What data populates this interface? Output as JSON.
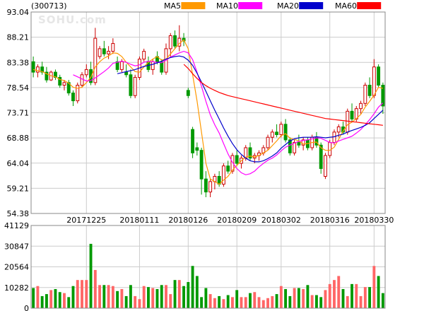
{
  "stock_code": "(300713)",
  "watermark": "SOHU.com",
  "legend": [
    {
      "name": "MA5",
      "color": "#ff9900"
    },
    {
      "name": "MA10",
      "color": "#ff00ff"
    },
    {
      "name": "MA20",
      "color": "#0000cc"
    },
    {
      "name": "MA60",
      "color": "#ff0000"
    }
  ],
  "colors": {
    "up": "#cc0000",
    "down": "#009900",
    "up_volume": "#ff6666",
    "grid": "#cccccc"
  },
  "chart_data": [
    {
      "type": "candlestick",
      "yticks": [
        "93.04",
        "88.21",
        "83.38",
        "78.54",
        "73.71",
        "68.88",
        "64.04",
        "59.21",
        "54.38"
      ],
      "ylim": [
        54.38,
        93.04
      ],
      "xticks": [
        {
          "label": "20171225",
          "index": 12
        },
        {
          "label": "20180111",
          "index": 24
        },
        {
          "label": "20180126",
          "index": 35
        },
        {
          "label": "20180209",
          "index": 46
        },
        {
          "label": "20180302",
          "index": 56
        },
        {
          "label": "20180316",
          "index": 67
        },
        {
          "label": "20180330",
          "index": 77
        }
      ],
      "candles": [
        [
          83.5,
          84.5,
          80.5,
          81.5
        ],
        [
          81.5,
          83.0,
          80.5,
          82.5
        ],
        [
          82.5,
          83.5,
          81.0,
          81.5
        ],
        [
          81.5,
          82.5,
          79.5,
          80.0
        ],
        [
          80.0,
          81.8,
          79.8,
          81.5
        ],
        [
          81.5,
          82.0,
          80.0,
          80.5
        ],
        [
          80.5,
          81.0,
          78.5,
          79.0
        ],
        [
          79.0,
          80.0,
          78.0,
          79.5
        ],
        [
          79.5,
          80.0,
          77.0,
          77.5
        ],
        [
          77.5,
          78.0,
          75.0,
          76.0
        ],
        [
          76.0,
          79.5,
          75.5,
          79.0
        ],
        [
          79.0,
          81.5,
          78.5,
          81.0
        ],
        [
          81.0,
          83.0,
          80.5,
          82.0
        ],
        [
          82.0,
          83.5,
          79.0,
          79.5
        ],
        [
          79.5,
          90.0,
          79.0,
          88.0
        ],
        [
          84.5,
          86.5,
          84.0,
          86.0
        ],
        [
          86.0,
          87.5,
          84.5,
          85.0
        ],
        [
          85.0,
          86.5,
          84.0,
          85.5
        ],
        [
          85.5,
          88.0,
          85.0,
          87.0
        ],
        [
          83.5,
          84.5,
          81.5,
          82.0
        ],
        [
          82.0,
          84.0,
          81.5,
          83.5
        ],
        [
          81.5,
          83.0,
          80.5,
          81.0
        ],
        [
          81.0,
          82.0,
          76.5,
          77.0
        ],
        [
          77.0,
          81.0,
          76.5,
          80.5
        ],
        [
          80.5,
          84.5,
          80.0,
          84.0
        ],
        [
          84.0,
          86.0,
          83.5,
          85.5
        ],
        [
          83.5,
          84.5,
          81.5,
          82.0
        ],
        [
          82.0,
          84.0,
          81.0,
          83.5
        ],
        [
          84.5,
          85.5,
          83.0,
          83.5
        ],
        [
          83.5,
          84.0,
          81.0,
          81.5
        ],
        [
          81.5,
          87.0,
          81.0,
          86.0
        ],
        [
          86.0,
          89.0,
          84.5,
          88.5
        ],
        [
          88.5,
          89.5,
          86.0,
          86.5
        ],
        [
          86.5,
          90.5,
          85.5,
          88.0
        ],
        [
          88.0,
          89.0,
          86.5,
          87.5
        ],
        [
          78.0,
          78.5,
          76.5,
          77.0
        ],
        [
          70.5,
          71.0,
          65.0,
          66.0
        ],
        [
          67.0,
          68.0,
          65.5,
          66.5
        ],
        [
          66.5,
          67.0,
          58.0,
          61.0
        ],
        [
          61.0,
          62.5,
          57.5,
          58.5
        ],
        [
          58.5,
          61.0,
          57.5,
          60.5
        ],
        [
          60.5,
          62.0,
          59.0,
          61.5
        ],
        [
          61.5,
          62.5,
          59.5,
          60.0
        ],
        [
          60.0,
          64.0,
          59.5,
          63.5
        ],
        [
          63.5,
          64.5,
          62.0,
          62.5
        ],
        [
          62.5,
          66.0,
          62.0,
          65.5
        ],
        [
          65.5,
          66.5,
          63.5,
          64.0
        ],
        [
          64.0,
          65.5,
          63.0,
          65.0
        ],
        [
          65.0,
          67.5,
          64.5,
          67.0
        ],
        [
          67.0,
          68.0,
          64.5,
          65.0
        ],
        [
          65.0,
          66.0,
          64.0,
          65.5
        ],
        [
          65.5,
          66.5,
          64.5,
          66.0
        ],
        [
          66.0,
          67.5,
          65.5,
          67.0
        ],
        [
          67.0,
          69.5,
          66.5,
          69.0
        ],
        [
          69.0,
          70.5,
          68.0,
          70.0
        ],
        [
          70.0,
          71.5,
          69.0,
          69.5
        ],
        [
          69.5,
          72.0,
          69.0,
          71.5
        ],
        [
          71.5,
          72.5,
          68.0,
          68.5
        ],
        [
          68.5,
          69.0,
          65.5,
          66.0
        ],
        [
          66.0,
          68.5,
          65.5,
          68.0
        ],
        [
          68.0,
          69.5,
          67.0,
          67.5
        ],
        [
          67.5,
          69.0,
          66.5,
          68.5
        ],
        [
          68.5,
          69.0,
          66.5,
          67.0
        ],
        [
          67.0,
          69.5,
          66.5,
          69.0
        ],
        [
          69.0,
          70.0,
          67.0,
          67.5
        ],
        [
          67.5,
          68.0,
          62.0,
          63.0
        ],
        [
          61.5,
          66.0,
          61.0,
          65.5
        ],
        [
          65.5,
          68.5,
          65.0,
          68.0
        ],
        [
          68.0,
          70.5,
          67.5,
          70.0
        ],
        [
          70.0,
          71.5,
          69.0,
          71.0
        ],
        [
          71.0,
          72.0,
          69.5,
          70.0
        ],
        [
          70.0,
          74.5,
          69.5,
          74.0
        ],
        [
          74.0,
          75.5,
          72.0,
          72.5
        ],
        [
          72.5,
          75.0,
          72.0,
          74.5
        ],
        [
          74.5,
          76.0,
          73.5,
          75.5
        ],
        [
          75.5,
          79.5,
          75.0,
          79.0
        ],
        [
          79.0,
          80.5,
          76.5,
          77.0
        ],
        [
          77.0,
          84.0,
          76.5,
          82.5
        ],
        [
          82.5,
          83.0,
          78.5,
          79.0
        ],
        [
          79.0,
          79.5,
          73.5,
          75.0
        ]
      ],
      "ma5": [
        82.0,
        81.8,
        81.6,
        81.2,
        80.8,
        80.6,
        80.1,
        79.9,
        79.4,
        78.6,
        78.4,
        78.6,
        79.5,
        80.5,
        82.5,
        83.5,
        84.2,
        84.6,
        85.2,
        85.1,
        84.5,
        83.4,
        82.5,
        81.6,
        81.5,
        82.5,
        83.4,
        84.0,
        84.5,
        83.8,
        84.0,
        85.0,
        86.0,
        87.0,
        87.7,
        86.0,
        81.0,
        76.0,
        70.0,
        64.0,
        61.0,
        60.5,
        60.0,
        60.8,
        61.5,
        62.7,
        63.6,
        64.5,
        65.2,
        65.4,
        65.2,
        65.5,
        66.0,
        66.5,
        67.4,
        68.3,
        69.3,
        69.7,
        68.8,
        68.6,
        68.3,
        67.7,
        67.8,
        68.0,
        68.1,
        67.0,
        66.5,
        66.5,
        67.1,
        68.6,
        70.2,
        71.4,
        71.9,
        72.6,
        73.4,
        74.8,
        75.9,
        77.1,
        78.6,
        78.4
      ],
      "ma10": [
        null,
        null,
        null,
        null,
        null,
        null,
        null,
        null,
        null,
        81.0,
        80.6,
        80.2,
        79.8,
        79.9,
        80.4,
        81.0,
        81.6,
        82.3,
        83.2,
        83.4,
        83.6,
        83.4,
        83.0,
        82.7,
        82.9,
        83.4,
        83.6,
        83.5,
        83.4,
        83.3,
        83.8,
        84.4,
        84.8,
        85.2,
        85.5,
        85.2,
        83.9,
        81.5,
        78.8,
        75.9,
        73.3,
        71.4,
        69.8,
        67.8,
        65.8,
        64.2,
        63.0,
        62.2,
        61.8,
        62.0,
        62.5,
        63.3,
        64.0,
        64.6,
        65.0,
        65.6,
        66.4,
        67.1,
        67.5,
        67.9,
        68.2,
        68.4,
        68.5,
        68.7,
        68.9,
        68.8,
        68.4,
        68.0,
        67.9,
        68.3,
        68.6,
        68.9,
        69.2,
        69.8,
        70.5,
        71.4,
        72.4,
        73.5,
        74.8,
        75.6
      ],
      "ma20": [
        null,
        null,
        null,
        null,
        null,
        null,
        null,
        null,
        null,
        null,
        null,
        null,
        null,
        null,
        null,
        null,
        null,
        null,
        null,
        81.2,
        81.4,
        81.6,
        81.8,
        82.0,
        82.3,
        82.6,
        82.8,
        83.0,
        83.3,
        83.6,
        84.0,
        84.3,
        84.5,
        84.6,
        84.4,
        83.8,
        82.8,
        81.3,
        79.6,
        77.8,
        76.0,
        74.2,
        72.5,
        70.8,
        69.2,
        67.8,
        66.6,
        65.7,
        65.0,
        64.5,
        64.3,
        64.3,
        64.5,
        64.9,
        65.4,
        66.0,
        66.9,
        67.6,
        68.3,
        68.7,
        68.9,
        69.0,
        69.0,
        69.0,
        69.1,
        69.0,
        68.9,
        69.0,
        69.1,
        69.4,
        69.6,
        70.0,
        70.3,
        70.6,
        70.9,
        71.3,
        71.8,
        72.6,
        73.4,
        74.2
      ],
      "ma60": [
        null,
        null,
        null,
        null,
        null,
        null,
        null,
        null,
        null,
        null,
        null,
        null,
        null,
        null,
        null,
        null,
        null,
        null,
        null,
        null,
        null,
        null,
        null,
        null,
        null,
        null,
        null,
        null,
        null,
        null,
        null,
        null,
        null,
        null,
        83.0,
        82.2,
        81.2,
        80.3,
        79.5,
        78.9,
        78.4,
        78.0,
        77.6,
        77.3,
        77.0,
        76.8,
        76.6,
        76.4,
        76.2,
        76.0,
        75.8,
        75.6,
        75.4,
        75.2,
        75.0,
        74.8,
        74.6,
        74.4,
        74.2,
        74.0,
        73.8,
        73.6,
        73.4,
        73.2,
        73.0,
        72.8,
        72.6,
        72.5,
        72.4,
        72.3,
        72.2,
        72.1,
        72.0,
        71.9,
        71.8,
        71.7,
        71.6,
        71.5,
        71.4,
        71.3
      ],
      "volume_yticks": [
        "41129",
        "30847",
        "20564",
        "10282",
        "0"
      ],
      "volume_ylim": [
        0,
        41129
      ],
      "volume": [
        10000,
        11000,
        6000,
        7000,
        9000,
        9500,
        8000,
        7500,
        5500,
        11000,
        14000,
        14000,
        14000,
        32000,
        19000,
        11500,
        11500,
        11500,
        11000,
        8500,
        9500,
        6000,
        11500,
        6000,
        4500,
        11000,
        10500,
        10000,
        9500,
        11500,
        11500,
        7000,
        14000,
        14000,
        11000,
        13000,
        21000,
        16000,
        5500,
        10000,
        7000,
        5000,
        6000,
        4500,
        6500,
        5500,
        9000,
        5500,
        5500,
        7500,
        8000,
        5500,
        4000,
        5000,
        6000,
        7000,
        11000,
        9500,
        6000,
        10000,
        10000,
        9500,
        11500,
        6500,
        6500,
        5500,
        9000,
        12000,
        14000,
        16000,
        9500,
        6000,
        12000,
        12000,
        6000,
        10500,
        10500,
        21000,
        16000,
        7500
      ]
    }
  ]
}
